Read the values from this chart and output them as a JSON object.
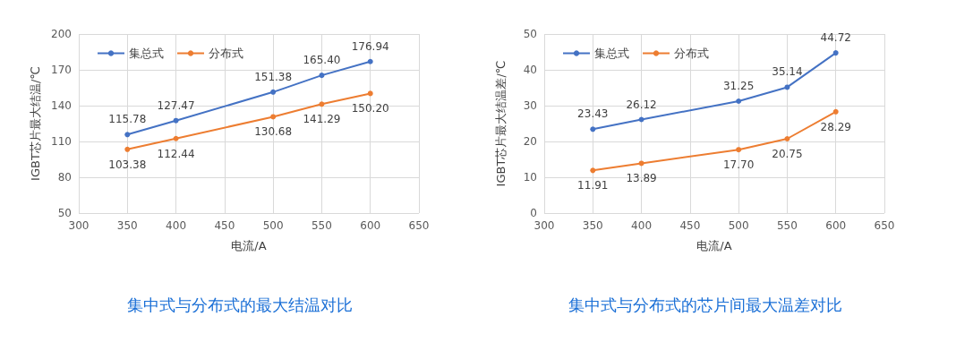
{
  "chart_data": [
    {
      "type": "line",
      "title": "集中式与分布式的最大结温对比",
      "xlabel": "电流/A",
      "ylabel": "IGBT芯片最大结温/℃",
      "x": [
        350,
        400,
        500,
        550,
        600
      ],
      "series": [
        {
          "name": "集总式",
          "color": "#4472c4",
          "values": [
            115.78,
            127.47,
            151.38,
            165.4,
            176.94
          ],
          "value_labels": [
            "115.78",
            "127.47",
            "151.38",
            "165.40",
            "176.94"
          ]
        },
        {
          "name": "分布式",
          "color": "#ed7d31",
          "values": [
            103.38,
            112.44,
            130.68,
            141.29,
            150.2
          ],
          "value_labels": [
            "103.38",
            "112.44",
            "130.68",
            "141.29",
            "150.20"
          ]
        }
      ],
      "xlim": [
        300,
        650
      ],
      "xticks": [
        300,
        350,
        400,
        450,
        500,
        550,
        600,
        650
      ],
      "ylim": [
        50,
        200
      ],
      "yticks": [
        50,
        80,
        110,
        140,
        170,
        200
      ],
      "grid": true,
      "legend": "top left",
      "marker": "circle"
    },
    {
      "type": "line",
      "title": "集中式与分布式的芯片间最大温差对比",
      "xlabel": "电流/A",
      "ylabel": "IGBT芯片最大结温差/℃",
      "x": [
        350,
        400,
        500,
        550,
        600
      ],
      "series": [
        {
          "name": "集总式",
          "color": "#4472c4",
          "values": [
            23.43,
            26.12,
            31.25,
            35.14,
            44.72
          ],
          "value_labels": [
            "23.43",
            "26.12",
            "31.25",
            "35.14",
            "44.72"
          ]
        },
        {
          "name": "分布式",
          "color": "#ed7d31",
          "values": [
            11.91,
            13.89,
            17.7,
            20.75,
            28.29
          ],
          "value_labels": [
            "11.91",
            "13.89",
            "17.70",
            "20.75",
            "28.29"
          ]
        }
      ],
      "xlim": [
        300,
        650
      ],
      "xticks": [
        300,
        350,
        400,
        450,
        500,
        550,
        600,
        650
      ],
      "ylim": [
        0,
        50
      ],
      "yticks": [
        0,
        10,
        20,
        30,
        40,
        50
      ],
      "grid": true,
      "legend": "top left",
      "marker": "circle"
    }
  ]
}
